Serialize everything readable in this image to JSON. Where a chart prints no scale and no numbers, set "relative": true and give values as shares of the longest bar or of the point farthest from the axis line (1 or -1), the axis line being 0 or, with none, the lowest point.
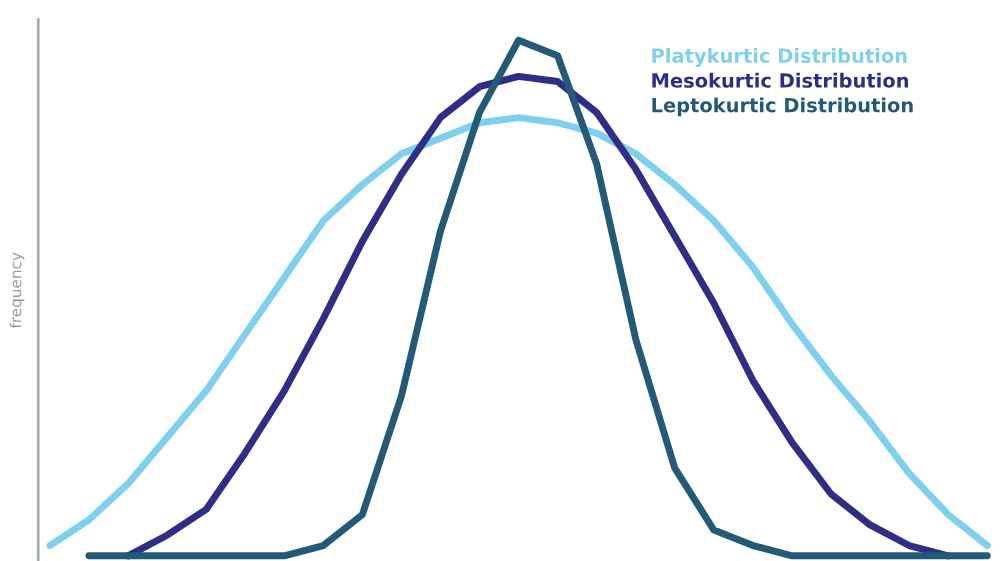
{
  "chart_data": {
    "type": "line",
    "relative": true,
    "ylabel": "frequency",
    "legend": "top right",
    "grid": false,
    "categories": [
      null,
      null,
      null,
      null,
      null,
      null,
      null,
      null,
      null,
      null,
      null,
      null,
      null,
      null,
      null,
      null,
      null,
      null,
      null,
      null,
      null,
      null,
      null,
      null,
      null
    ],
    "series": [
      {
        "name": "Platykurtic Distribution",
        "color": "#7fd0ee",
        "values": [
          0.02,
          0.07,
          0.14,
          0.23,
          0.32,
          0.43,
          0.54,
          0.65,
          0.72,
          0.78,
          0.81,
          0.84,
          0.85,
          0.84,
          0.82,
          0.78,
          0.72,
          0.65,
          0.56,
          0.45,
          0.35,
          0.26,
          0.16,
          0.08,
          0.02
        ]
      },
      {
        "name": "Mesokurtic Distribution",
        "color": "#2e2e86",
        "values": [
          null,
          null,
          0.0,
          0.04,
          0.09,
          0.2,
          0.32,
          0.46,
          0.61,
          0.74,
          0.85,
          0.91,
          0.93,
          0.92,
          0.86,
          0.75,
          0.62,
          0.49,
          0.34,
          0.22,
          0.12,
          0.06,
          0.02,
          0.0,
          null
        ]
      },
      {
        "name": "Leptokurtic Distribution",
        "color": "#235a78",
        "values": [
          null,
          0,
          0,
          0,
          0,
          0,
          0,
          0.02,
          0.08,
          0.31,
          0.63,
          0.86,
          1,
          0.97,
          0.76,
          0.42,
          0.17,
          0.05,
          0.02,
          0,
          0,
          0,
          0,
          0,
          0
        ]
      }
    ]
  }
}
